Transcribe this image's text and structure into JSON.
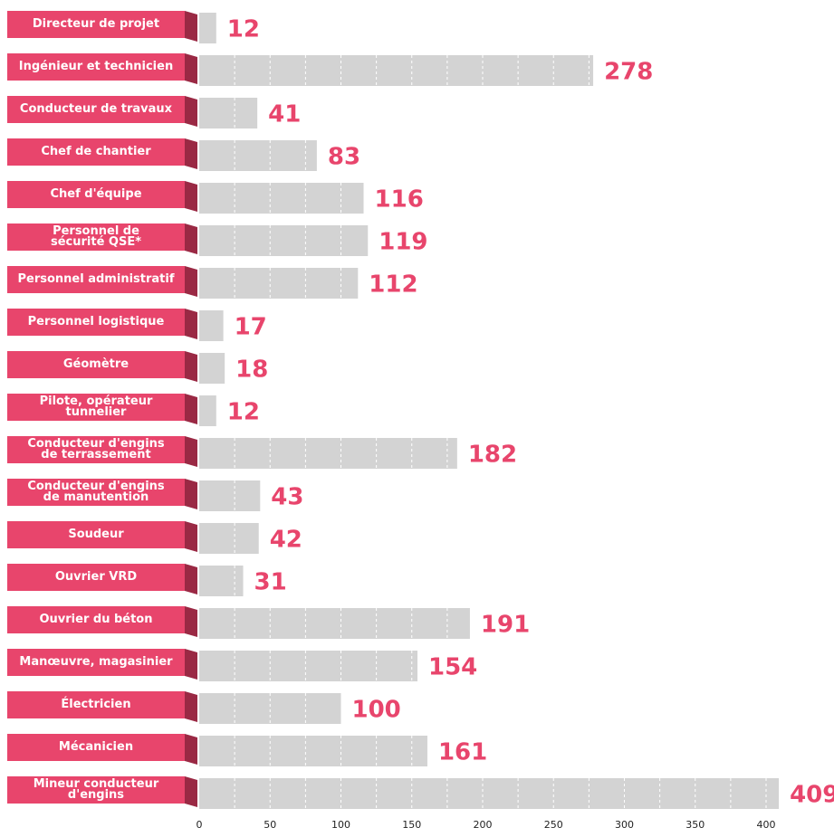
{
  "chart_data": {
    "type": "bar",
    "orientation": "horizontal",
    "categories": [
      "Directeur de projet",
      "Ingénieur et technicien",
      "Conducteur de travaux",
      "Chef de chantier",
      "Chef d'équipe",
      "Personnel de\nsécurité QSE*",
      "Personnel administratif",
      "Personnel logistique",
      "Géomètre",
      "Pilote, opérateur\ntunnelier",
      "Conducteur d'engins\nde terrassement",
      "Conducteur d'engins\nde manutention",
      "Soudeur",
      "Ouvrier VRD",
      "Ouvrier du béton",
      "Manœuvre, magasinier",
      "Électricien",
      "Mécanicien",
      "Mineur conducteur\nd'engins"
    ],
    "values": [
      12,
      278,
      41,
      83,
      116,
      119,
      112,
      17,
      18,
      12,
      182,
      43,
      42,
      31,
      191,
      154,
      100,
      161,
      409
    ],
    "color": "#d3d3d3",
    "label_color": "#e8456c",
    "value_label_color": "#e8456c",
    "xlim": [
      0,
      409
    ],
    "xticks": [
      0,
      50,
      100,
      150,
      200,
      250,
      300,
      350,
      400
    ]
  }
}
